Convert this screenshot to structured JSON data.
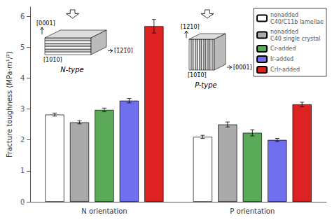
{
  "chart_data": {
    "type": "bar",
    "categories": [
      "N orientation",
      "P orientation"
    ],
    "series": [
      {
        "name": "nonadded\nC40/C11b lamellae",
        "color": "white",
        "values": [
          2.82,
          2.1
        ],
        "errors": [
          0.05,
          0.05
        ]
      },
      {
        "name": "nonadded\nC40 single crystal",
        "color": "#aaaaaa",
        "values": [
          2.57,
          2.5
        ],
        "errors": [
          0.05,
          0.08
        ]
      },
      {
        "name": "Cr-added",
        "color": "#5aaa5a",
        "values": [
          2.97,
          2.23
        ],
        "errors": [
          0.06,
          0.1
        ]
      },
      {
        "name": "Ir-added",
        "color": "#7070ee",
        "values": [
          3.27,
          2.0
        ],
        "errors": [
          0.07,
          0.05
        ]
      },
      {
        "name": "CrIr-added",
        "color": "#dd2222",
        "values": [
          5.68,
          3.15
        ],
        "errors": [
          0.22,
          0.07
        ]
      }
    ],
    "ylabel": "Fracture toughness (MPa·m¹/²)",
    "ylim": [
      0,
      6.3
    ],
    "yticks": [
      0,
      1,
      2,
      3,
      4,
      5,
      6
    ],
    "grid": false,
    "legend": "upper right",
    "annotations": [
      "[0001]",
      "[101̄0]",
      "[1̄21̄0]",
      "N-type",
      "[12̄10]",
      "[101̄0]",
      "[0001]",
      "P-type"
    ]
  }
}
